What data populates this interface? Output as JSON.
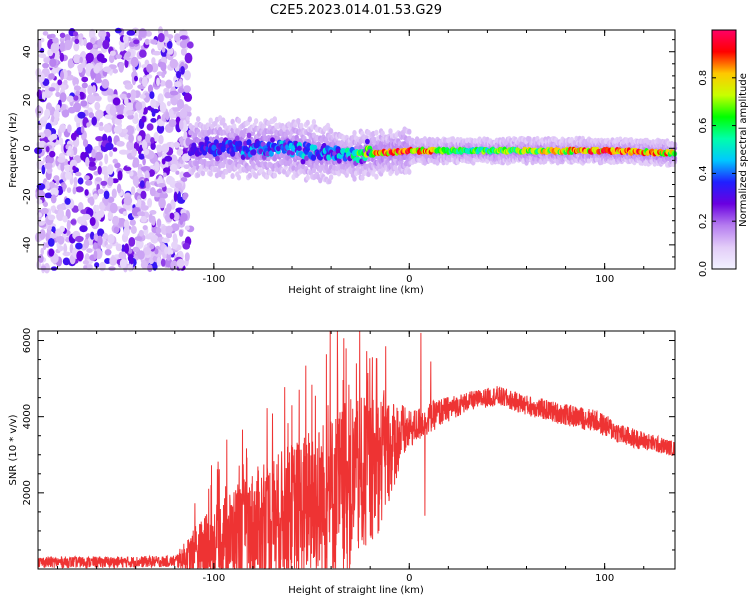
{
  "figure": {
    "title": "C2E5.2023.014.01.53.G29"
  },
  "chart_data": [
    {
      "type": "heatmap",
      "title": "C2E5.2023.014.01.53.G29",
      "xlabel": "Height of straight line (km)",
      "ylabel": "Frequency (Hz)",
      "xlim": [
        -190,
        136
      ],
      "ylim": [
        -50,
        49
      ],
      "xticks": [
        -100,
        0,
        100
      ],
      "yticks": [
        -40,
        -20,
        0,
        20,
        40
      ],
      "colorbar": {
        "label": "Normalized spectral amplitude",
        "range": [
          0,
          1
        ],
        "ticks": [
          "0.0",
          "0.2",
          "0.4",
          "0.6",
          "0.8"
        ],
        "colormap": [
          "#f2f2ff",
          "#e3cdf8",
          "#b67df0",
          "#6a00e0",
          "#2020ff",
          "#00c8ff",
          "#00ffaa",
          "#00ff00",
          "#c8ff00",
          "#ffc800",
          "#ff0000",
          "#ff0066"
        ]
      },
      "features": {
        "noise_region_x": [
          -190,
          -112
        ],
        "trace_start_x": -112,
        "trace_path": [
          {
            "x": -112,
            "y": 0,
            "amp": 0.3
          },
          {
            "x": -90,
            "y": 0,
            "amp": 0.4
          },
          {
            "x": -60,
            "y": 0,
            "amp": 0.45
          },
          {
            "x": -45,
            "y": -2,
            "amp": 0.45
          },
          {
            "x": -30,
            "y": -3,
            "amp": 0.5
          },
          {
            "x": -15,
            "y": -2,
            "amp": 0.85
          },
          {
            "x": 0,
            "y": -1,
            "amp": 0.9
          },
          {
            "x": 30,
            "y": -1,
            "amp": 0.6
          },
          {
            "x": 60,
            "y": -1,
            "amp": 0.7
          },
          {
            "x": 100,
            "y": -1,
            "amp": 0.9
          },
          {
            "x": 136,
            "y": -2,
            "amp": 0.8
          }
        ]
      }
    },
    {
      "type": "line",
      "xlabel": "Height of straight line (km)",
      "ylabel": "SNR (10 * v/v)",
      "xlim": [
        -190,
        136
      ],
      "ylim": [
        0,
        6250
      ],
      "xticks": [
        -100,
        0,
        100
      ],
      "yticks": [
        2000,
        4000,
        6000
      ],
      "color": "#ee3333",
      "series": [
        {
          "envelope_mean": [
            [
              -190,
              180
            ],
            [
              -150,
              180
            ],
            [
              -120,
              200
            ],
            [
              -105,
              500
            ],
            [
              -90,
              900
            ],
            [
              -70,
              1300
            ],
            [
              -50,
              1700
            ],
            [
              -30,
              2200
            ],
            [
              -15,
              2800
            ],
            [
              -5,
              3500
            ],
            [
              5,
              3800
            ],
            [
              15,
              4100
            ],
            [
              30,
              4400
            ],
            [
              45,
              4550
            ],
            [
              60,
              4300
            ],
            [
              80,
              4050
            ],
            [
              95,
              3900
            ],
            [
              110,
              3500
            ],
            [
              136,
              3150
            ]
          ],
          "envelope_spread": [
            [
              -190,
              150
            ],
            [
              -120,
              150
            ],
            [
              -105,
              900
            ],
            [
              -80,
              1500
            ],
            [
              -50,
              2000
            ],
            [
              -30,
              2300
            ],
            [
              -15,
              1800
            ],
            [
              0,
              500
            ],
            [
              30,
              250
            ],
            [
              100,
              300
            ],
            [
              136,
              200
            ]
          ],
          "spikes": [
            {
              "x": -85,
              "y": 2750
            },
            {
              "x": -60,
              "y": 4300
            },
            {
              "x": -48,
              "y": 4550
            },
            {
              "x": -27,
              "y": 5400
            },
            {
              "x": -12,
              "y": 5850
            },
            {
              "x": 6,
              "y": 6200
            },
            {
              "x": 11,
              "y": 5450
            },
            {
              "x": 8,
              "y": 1400
            }
          ]
        }
      ]
    }
  ]
}
